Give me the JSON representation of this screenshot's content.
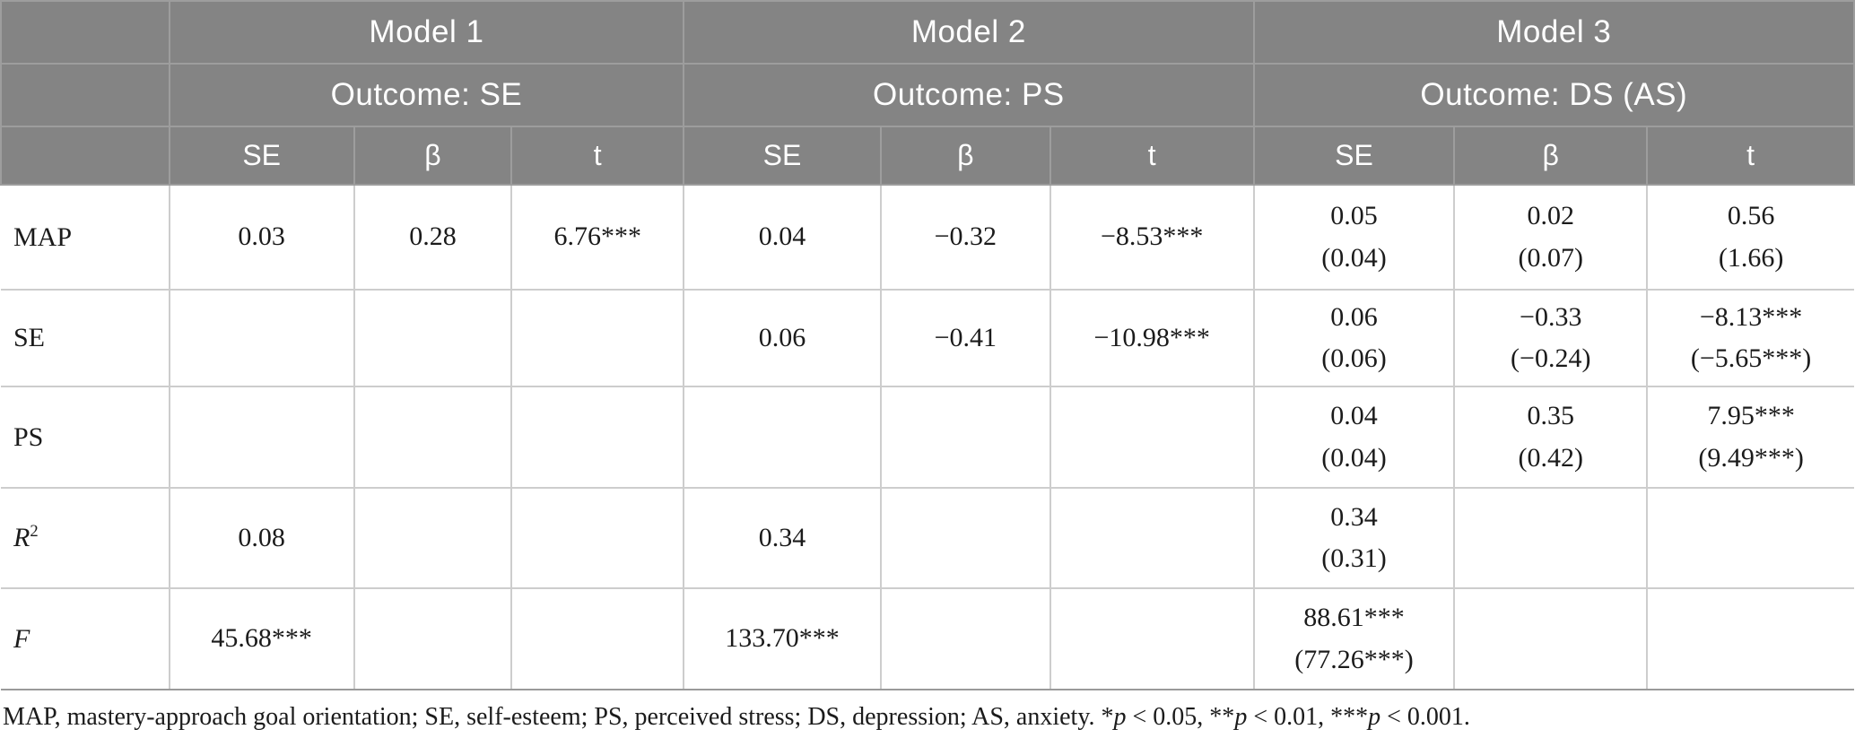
{
  "table": {
    "header": {
      "models": [
        {
          "name": "Model 1",
          "outcome": "Outcome: SE"
        },
        {
          "name": "Model 2",
          "outcome": "Outcome: PS"
        },
        {
          "name": "Model 3",
          "outcome": "Outcome: DS (AS)"
        }
      ],
      "sub_labels": [
        "SE",
        "β",
        "t"
      ]
    },
    "rows": [
      {
        "label": {
          "text": "MAP",
          "italic": false,
          "sup": ""
        },
        "cells": [
          [
            "0.03"
          ],
          [
            "0.28"
          ],
          [
            "6.76***"
          ],
          [
            "0.04"
          ],
          [
            "−0.32"
          ],
          [
            "−8.53***"
          ],
          [
            "0.05",
            "(0.04)"
          ],
          [
            "0.02",
            "(0.07)"
          ],
          [
            "0.56",
            "(1.66)"
          ]
        ]
      },
      {
        "label": {
          "text": "SE",
          "italic": false,
          "sup": ""
        },
        "cells": [
          [],
          [],
          [],
          [
            "0.06"
          ],
          [
            "−0.41"
          ],
          [
            "−10.98***"
          ],
          [
            "0.06",
            "(0.06)"
          ],
          [
            "−0.33",
            "(−0.24)"
          ],
          [
            "−8.13***",
            "(−5.65***)"
          ]
        ]
      },
      {
        "label": {
          "text": "PS",
          "italic": false,
          "sup": ""
        },
        "cells": [
          [],
          [],
          [],
          [],
          [],
          [],
          [
            "0.04",
            "(0.04)"
          ],
          [
            "0.35",
            "(0.42)"
          ],
          [
            "7.95***",
            "(9.49***)"
          ]
        ]
      },
      {
        "label": {
          "text": "R",
          "italic": true,
          "sup": "2"
        },
        "cells": [
          [
            "0.08"
          ],
          [],
          [],
          [
            "0.34"
          ],
          [],
          [],
          [
            "0.34",
            "(0.31)"
          ],
          [],
          []
        ]
      },
      {
        "label": {
          "text": "F",
          "italic": true,
          "sup": ""
        },
        "cells": [
          [
            "45.68***"
          ],
          [],
          [],
          [
            "133.70***"
          ],
          [],
          [],
          [
            "88.61***",
            "(77.26***)"
          ],
          [],
          []
        ]
      }
    ]
  },
  "footnote": {
    "parts": [
      {
        "t": "MAP, mastery-approach goal orientation; SE, self-esteem; PS, perceived stress; DS, depression; AS, anxiety. *",
        "i": false
      },
      {
        "t": "p",
        "i": true
      },
      {
        "t": " < 0.05, **",
        "i": false
      },
      {
        "t": "p",
        "i": true
      },
      {
        "t": " < 0.01, ***",
        "i": false
      },
      {
        "t": "p",
        "i": true
      },
      {
        "t": " < 0.001.",
        "i": false
      }
    ]
  },
  "colors": {
    "header_bg": "#848484",
    "header_text": "#ffffff",
    "header_line": "#9d9d9d",
    "body_border": "#cdcdcd",
    "table_bottom_line": "#9a9a9a",
    "body_text": "#1b1b1b"
  }
}
